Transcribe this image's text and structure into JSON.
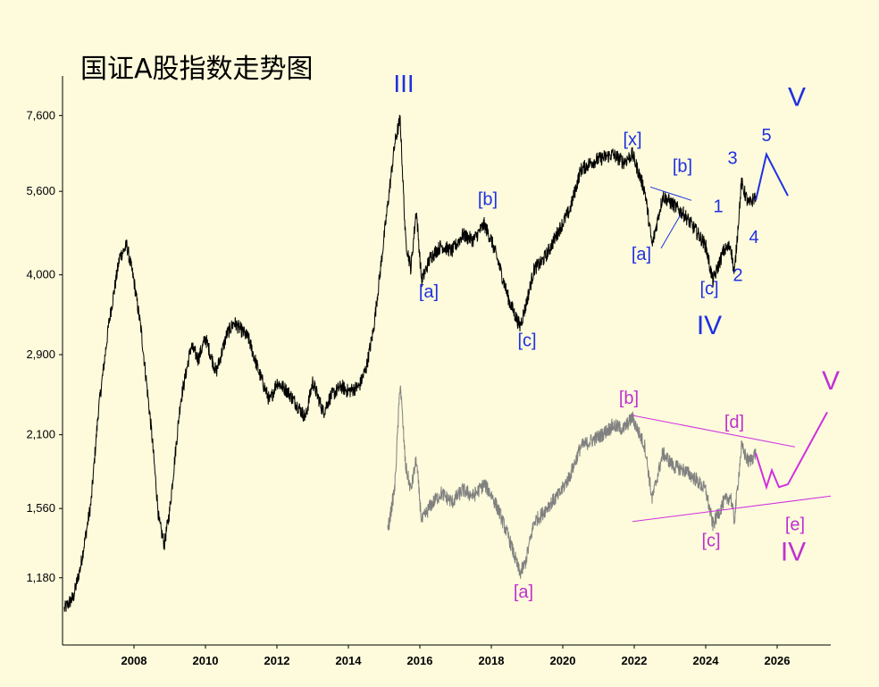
{
  "title": "国证A股指数走势图",
  "chart_data": {
    "type": "line",
    "title": "国证A股指数走势图",
    "y_scale": "log",
    "ylim": [
      900,
      8600
    ],
    "xlim": [
      2006.0,
      2027.5
    ],
    "yticks": [
      1180,
      1560,
      2100,
      2900,
      4000,
      5600,
      7600
    ],
    "ytick_labels": [
      "1,180",
      "1,560",
      "2,100",
      "2,900",
      "4,000",
      "5,600",
      "7,600"
    ],
    "xticks": [
      2008,
      2010,
      2012,
      2014,
      2016,
      2018,
      2020,
      2022,
      2024,
      2026
    ],
    "xtick_labels": [
      "2008",
      "2010",
      "2012",
      "2014",
      "2016",
      "2018",
      "2020",
      "2022",
      "2024",
      "2026"
    ],
    "series": [
      {
        "color": "#000000",
        "x": [
          2006.05,
          2006.3,
          2006.5,
          2006.8,
          2007.0,
          2007.3,
          2007.6,
          2007.8,
          2008.0,
          2008.2,
          2008.5,
          2008.7,
          2008.85,
          2009.0,
          2009.3,
          2009.6,
          2009.8,
          2010.0,
          2010.3,
          2010.6,
          2010.8,
          2011.0,
          2011.2,
          2011.5,
          2011.8,
          2012.0,
          2012.3,
          2012.6,
          2012.8,
          2013.0,
          2013.3,
          2013.5,
          2013.8,
          2014.0,
          2014.3,
          2014.5,
          2014.7,
          2014.9,
          2015.1,
          2015.3,
          2015.45,
          2015.6,
          2015.75,
          2015.9,
          2016.05,
          2016.3,
          2016.6,
          2016.9,
          2017.2,
          2017.5,
          2017.8,
          2018.0,
          2018.2,
          2018.5,
          2018.8,
          2018.95,
          2019.2,
          2019.4,
          2019.6,
          2019.9,
          2020.2,
          2020.5,
          2020.8,
          2021.1,
          2021.4,
          2021.7,
          2021.95,
          2022.3,
          2022.5,
          2022.8,
          2023.1,
          2023.4,
          2023.7,
          2024.0,
          2024.2,
          2024.5,
          2024.7,
          2024.8,
          2025.0,
          2025.2,
          2025.4
        ],
        "y": [
          1040,
          1090,
          1230,
          1600,
          2300,
          3300,
          4300,
          4500,
          3900,
          3200,
          2100,
          1480,
          1350,
          1550,
          2400,
          3000,
          2850,
          3100,
          2700,
          3150,
          3300,
          3200,
          3100,
          2700,
          2400,
          2600,
          2500,
          2350,
          2250,
          2600,
          2300,
          2450,
          2550,
          2500,
          2550,
          2750,
          3200,
          4100,
          5300,
          6800,
          7500,
          4600,
          4100,
          5200,
          3900,
          4300,
          4500,
          4400,
          4700,
          4600,
          4900,
          4600,
          4200,
          3600,
          3250,
          3500,
          4100,
          4200,
          4400,
          4800,
          5200,
          6100,
          6300,
          6400,
          6500,
          6300,
          6500,
          5600,
          4500,
          5500,
          5300,
          5100,
          4800,
          4500,
          3900,
          4400,
          4500,
          4000,
          5800,
          5300,
          5500
        ]
      },
      {
        "color": "#808080",
        "x": [
          2015.1,
          2015.3,
          2015.45,
          2015.6,
          2015.75,
          2015.9,
          2016.05,
          2016.3,
          2016.6,
          2016.9,
          2017.2,
          2017.5,
          2017.8,
          2018.0,
          2018.2,
          2018.5,
          2018.8,
          2018.95,
          2019.2,
          2019.4,
          2019.6,
          2019.9,
          2020.2,
          2020.5,
          2020.8,
          2021.1,
          2021.4,
          2021.7,
          2021.95,
          2022.3,
          2022.5,
          2022.8,
          2023.1,
          2023.4,
          2023.7,
          2024.0,
          2024.2,
          2024.5,
          2024.7,
          2024.8,
          2025.0,
          2025.2,
          2025.4
        ],
        "y": [
          1420,
          1700,
          2600,
          1850,
          1680,
          1900,
          1480,
          1580,
          1660,
          1600,
          1680,
          1640,
          1720,
          1650,
          1550,
          1380,
          1200,
          1250,
          1480,
          1520,
          1580,
          1650,
          1780,
          2000,
          2050,
          2100,
          2180,
          2150,
          2250,
          2000,
          1620,
          1950,
          1850,
          1820,
          1760,
          1680,
          1460,
          1600,
          1640,
          1480,
          2000,
          1880,
          1950
        ]
      }
    ],
    "projection_blue": {
      "color": "#2030e0",
      "x": [
        2025.4,
        2025.7,
        2026.3
      ],
      "y": [
        5400,
        6500,
        5500
      ]
    },
    "projection_magenta": {
      "color": "#d030e0",
      "x": [
        2025.4,
        2025.7,
        2025.85,
        2026.05,
        2026.3,
        2027.4
      ],
      "y": [
        1950,
        1700,
        1820,
        1700,
        1720,
        2300
      ]
    },
    "trendlines_blue": [
      {
        "x": [
          2022.45,
          2023.6
        ],
        "y": [
          5700,
          5400
        ]
      },
      {
        "x": [
          2022.75,
          2023.3
        ],
        "y": [
          4450,
          5100
        ]
      }
    ],
    "trendlines_magenta": [
      {
        "x": [
          2021.95,
          2026.5
        ],
        "y": [
          2270,
          2000
        ]
      },
      {
        "x": [
          2021.95,
          2027.5
        ],
        "y": [
          1480,
          1640
        ]
      }
    ],
    "annotations": [
      {
        "text": "III",
        "x": 2015.55,
        "y": 8350,
        "color": "#2030e0",
        "size": 28
      },
      {
        "text": "V",
        "x": 2026.55,
        "y": 7900,
        "color": "#2030e0",
        "size": 30
      },
      {
        "text": "[a]",
        "x": 2016.25,
        "y": 3650,
        "color": "#2030e0",
        "size": 20
      },
      {
        "text": "[b]",
        "x": 2017.9,
        "y": 5300,
        "color": "#2030e0",
        "size": 20
      },
      {
        "text": "[c]",
        "x": 2019.0,
        "y": 3000,
        "color": "#2030e0",
        "size": 20
      },
      {
        "text": "[x]",
        "x": 2021.95,
        "y": 6750,
        "color": "#2030e0",
        "size": 20
      },
      {
        "text": "[a]",
        "x": 2022.2,
        "y": 4250,
        "color": "#2030e0",
        "size": 20
      },
      {
        "text": "[b]",
        "x": 2023.35,
        "y": 6050,
        "color": "#2030e0",
        "size": 20
      },
      {
        "text": "[c]",
        "x": 2024.1,
        "y": 3700,
        "color": "#2030e0",
        "size": 20
      },
      {
        "text": "IV",
        "x": 2024.1,
        "y": 3150,
        "color": "#2030e0",
        "size": 30
      },
      {
        "text": "1",
        "x": 2024.35,
        "y": 5150,
        "color": "#2030e0",
        "size": 20
      },
      {
        "text": "2",
        "x": 2024.9,
        "y": 3900,
        "color": "#2030e0",
        "size": 20
      },
      {
        "text": "3",
        "x": 2024.75,
        "y": 6250,
        "color": "#2030e0",
        "size": 20
      },
      {
        "text": "4",
        "x": 2025.35,
        "y": 4550,
        "color": "#2030e0",
        "size": 20
      },
      {
        "text": "5",
        "x": 2025.7,
        "y": 6850,
        "color": "#2030e0",
        "size": 20
      },
      {
        "text": "[b]",
        "x": 2021.85,
        "y": 2380,
        "color": "#c030d0",
        "size": 20
      },
      {
        "text": "[d]",
        "x": 2024.8,
        "y": 2160,
        "color": "#c030d0",
        "size": 20
      },
      {
        "text": "V",
        "x": 2027.5,
        "y": 2520,
        "color": "#c030d0",
        "size": 30
      },
      {
        "text": "[e]",
        "x": 2026.5,
        "y": 1430,
        "color": "#c030d0",
        "size": 20
      },
      {
        "text": "[c]",
        "x": 2024.15,
        "y": 1340,
        "color": "#c030d0",
        "size": 20
      },
      {
        "text": "IV",
        "x": 2026.45,
        "y": 1265,
        "color": "#c030d0",
        "size": 30
      },
      {
        "text": "[a]",
        "x": 2018.9,
        "y": 1090,
        "color": "#c030d0",
        "size": 20
      }
    ]
  }
}
